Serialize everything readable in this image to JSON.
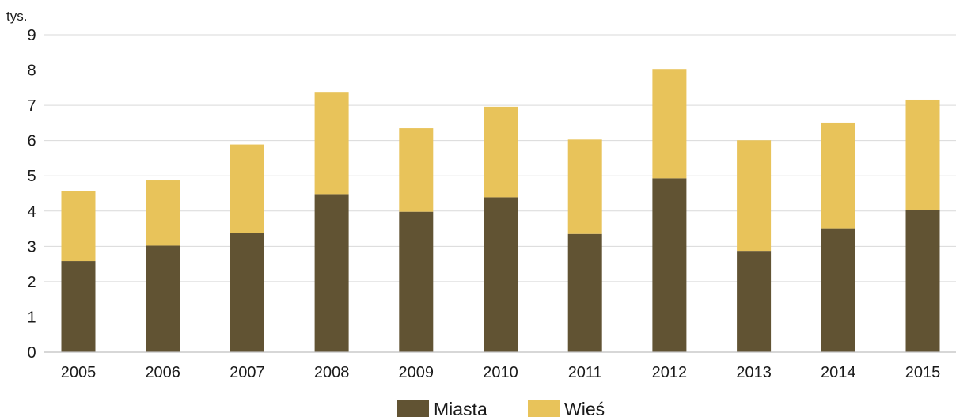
{
  "chart_data": {
    "type": "bar",
    "stacked": true,
    "unit_label": "tys.",
    "categories": [
      "2005",
      "2006",
      "2007",
      "2008",
      "2009",
      "2010",
      "2011",
      "2012",
      "2013",
      "2014",
      "2015"
    ],
    "series": [
      {
        "name": "Miasta",
        "color": "#615333",
        "values": [
          2.58,
          3.02,
          3.37,
          4.48,
          3.98,
          4.39,
          3.35,
          4.93,
          2.87,
          3.51,
          4.04
        ]
      },
      {
        "name": "Wieś",
        "color": "#e8c35a",
        "values": [
          1.98,
          1.85,
          2.52,
          2.9,
          2.37,
          2.57,
          2.68,
          3.1,
          3.14,
          3.0,
          3.12
        ]
      }
    ],
    "y_ticks": [
      "0",
      "1",
      "2",
      "3",
      "4",
      "5",
      "6",
      "7",
      "8",
      "9"
    ],
    "ylim": [
      0,
      9
    ],
    "grid": true,
    "legend_position": "bottom-center"
  }
}
